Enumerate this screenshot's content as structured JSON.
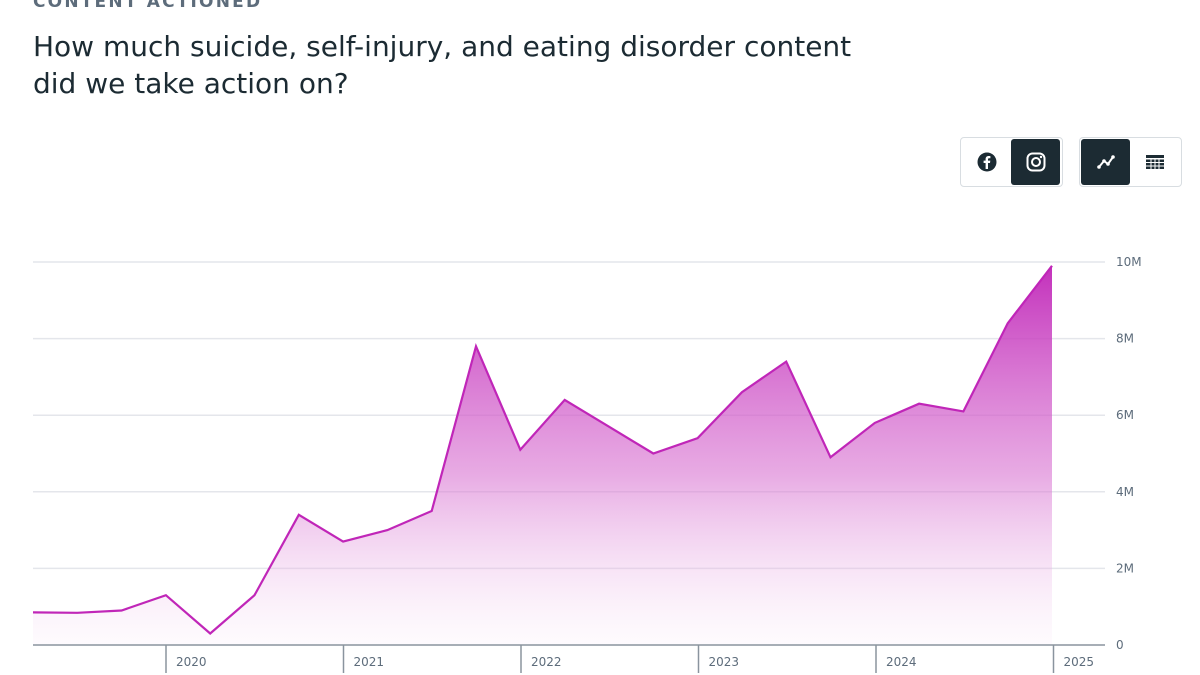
{
  "header": {
    "section_label": "CONTENT ACTIONED",
    "title": "How much suicide, self-injury, and eating disorder content did we take action on?"
  },
  "controls": {
    "platforms": [
      {
        "name": "facebook",
        "icon": "facebook-icon",
        "active": false
      },
      {
        "name": "instagram",
        "icon": "instagram-icon",
        "active": true
      }
    ],
    "views": [
      {
        "name": "chart",
        "icon": "line-chart-icon",
        "active": true
      },
      {
        "name": "table",
        "icon": "table-icon",
        "active": false
      }
    ]
  },
  "colors": {
    "series": "#c026b8",
    "grid": "#e4e6eb",
    "axis": "#8a949e",
    "active_button": "#1c2b33"
  },
  "chart_data": {
    "type": "area",
    "title": "",
    "xlabel": "",
    "ylabel": "",
    "x_ticks": [
      "2020",
      "2021",
      "2022",
      "2023",
      "2024",
      "2025"
    ],
    "y_ticks": [
      "0",
      "2M",
      "4M",
      "6M",
      "8M",
      "10M"
    ],
    "ylim": [
      0,
      10000000
    ],
    "grid": true,
    "series": [
      {
        "quarters": [
          "2019-Q1",
          "2019-Q2",
          "2019-Q3",
          "2019-Q4",
          "2020-Q1",
          "2020-Q2",
          "2020-Q3",
          "2020-Q4",
          "2021-Q1",
          "2021-Q2",
          "2021-Q3",
          "2021-Q4",
          "2022-Q1",
          "2022-Q2",
          "2022-Q3",
          "2022-Q4",
          "2023-Q1",
          "2023-Q2",
          "2023-Q3",
          "2023-Q4",
          "2024-Q1",
          "2024-Q2",
          "2024-Q3",
          "2024-Q4"
        ],
        "values": [
          850000,
          840000,
          900000,
          1300000,
          300000,
          1300000,
          3400000,
          2700000,
          3000000,
          3500000,
          7800000,
          5100000,
          6400000,
          5700000,
          5000000,
          5400000,
          6600000,
          7400000,
          4900000,
          5800000,
          6300000,
          6100000,
          8400000,
          9900000
        ]
      }
    ]
  }
}
